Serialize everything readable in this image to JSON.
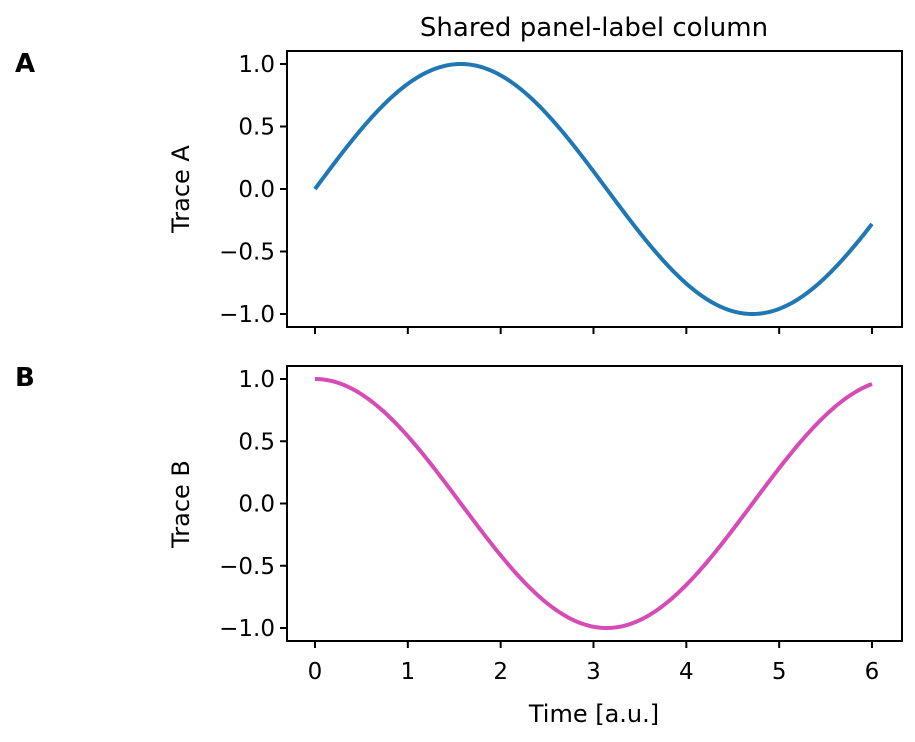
{
  "chart_data": [
    {
      "type": "line",
      "panel_label": "A",
      "title": "Shared panel-label column",
      "xlabel": "",
      "ylabel": "Trace A",
      "xlim": [
        -0.3,
        6.3
      ],
      "ylim": [
        -1.1,
        1.1
      ],
      "xticks": [
        0,
        1,
        2,
        3,
        4,
        5,
        6
      ],
      "xtick_labels_visible": false,
      "yticks": [
        1.0,
        0.5,
        0.0,
        -0.5,
        -1.0
      ],
      "ytick_labels": [
        "1.0",
        "0.5",
        "0.0",
        "−0.5",
        "−1.0"
      ],
      "series": [
        {
          "name": "Trace A",
          "function": "sin(t)",
          "color": "#1f77b4",
          "x": [
            0,
            0.5,
            1,
            1.5708,
            2,
            2.5,
            3,
            3.5,
            4,
            4.7124,
            5,
            5.5,
            6
          ],
          "values": [
            0.0,
            0.479,
            0.841,
            1.0,
            0.909,
            0.598,
            0.141,
            -0.351,
            -0.757,
            -1.0,
            -0.959,
            -0.706,
            -0.279
          ]
        }
      ],
      "grid": false
    },
    {
      "type": "line",
      "panel_label": "B",
      "title": "",
      "xlabel": "Time [a.u.]",
      "ylabel": "Trace B",
      "xlim": [
        -0.3,
        6.3
      ],
      "ylim": [
        -1.1,
        1.1
      ],
      "xticks": [
        0,
        1,
        2,
        3,
        4,
        5,
        6
      ],
      "xtick_labels": [
        "0",
        "1",
        "2",
        "3",
        "4",
        "5",
        "6"
      ],
      "yticks": [
        1.0,
        0.5,
        0.0,
        -0.5,
        -1.0
      ],
      "ytick_labels": [
        "1.0",
        "0.5",
        "0.0",
        "−0.5",
        "−1.0"
      ],
      "series": [
        {
          "name": "Trace B",
          "function": "cos(t)",
          "color": "#d64bb5",
          "x": [
            0,
            0.5,
            1,
            1.5,
            2,
            2.5,
            3,
            3.1416,
            3.5,
            4,
            4.5,
            5,
            5.5,
            6
          ],
          "values": [
            1.0,
            0.878,
            0.54,
            0.071,
            -0.416,
            -0.801,
            -0.99,
            -1.0,
            -0.936,
            -0.654,
            -0.211,
            0.284,
            0.709,
            0.96
          ]
        }
      ],
      "grid": false
    }
  ],
  "figure": {
    "title": "Shared panel-label column",
    "panel_labels": [
      "A",
      "B"
    ],
    "xlabel": "Time [a.u.]",
    "ylabel_a": "Trace A",
    "ylabel_b": "Trace B",
    "colors": {
      "trace_a": "#1f77b4",
      "trace_b": "#d64bb5"
    }
  }
}
